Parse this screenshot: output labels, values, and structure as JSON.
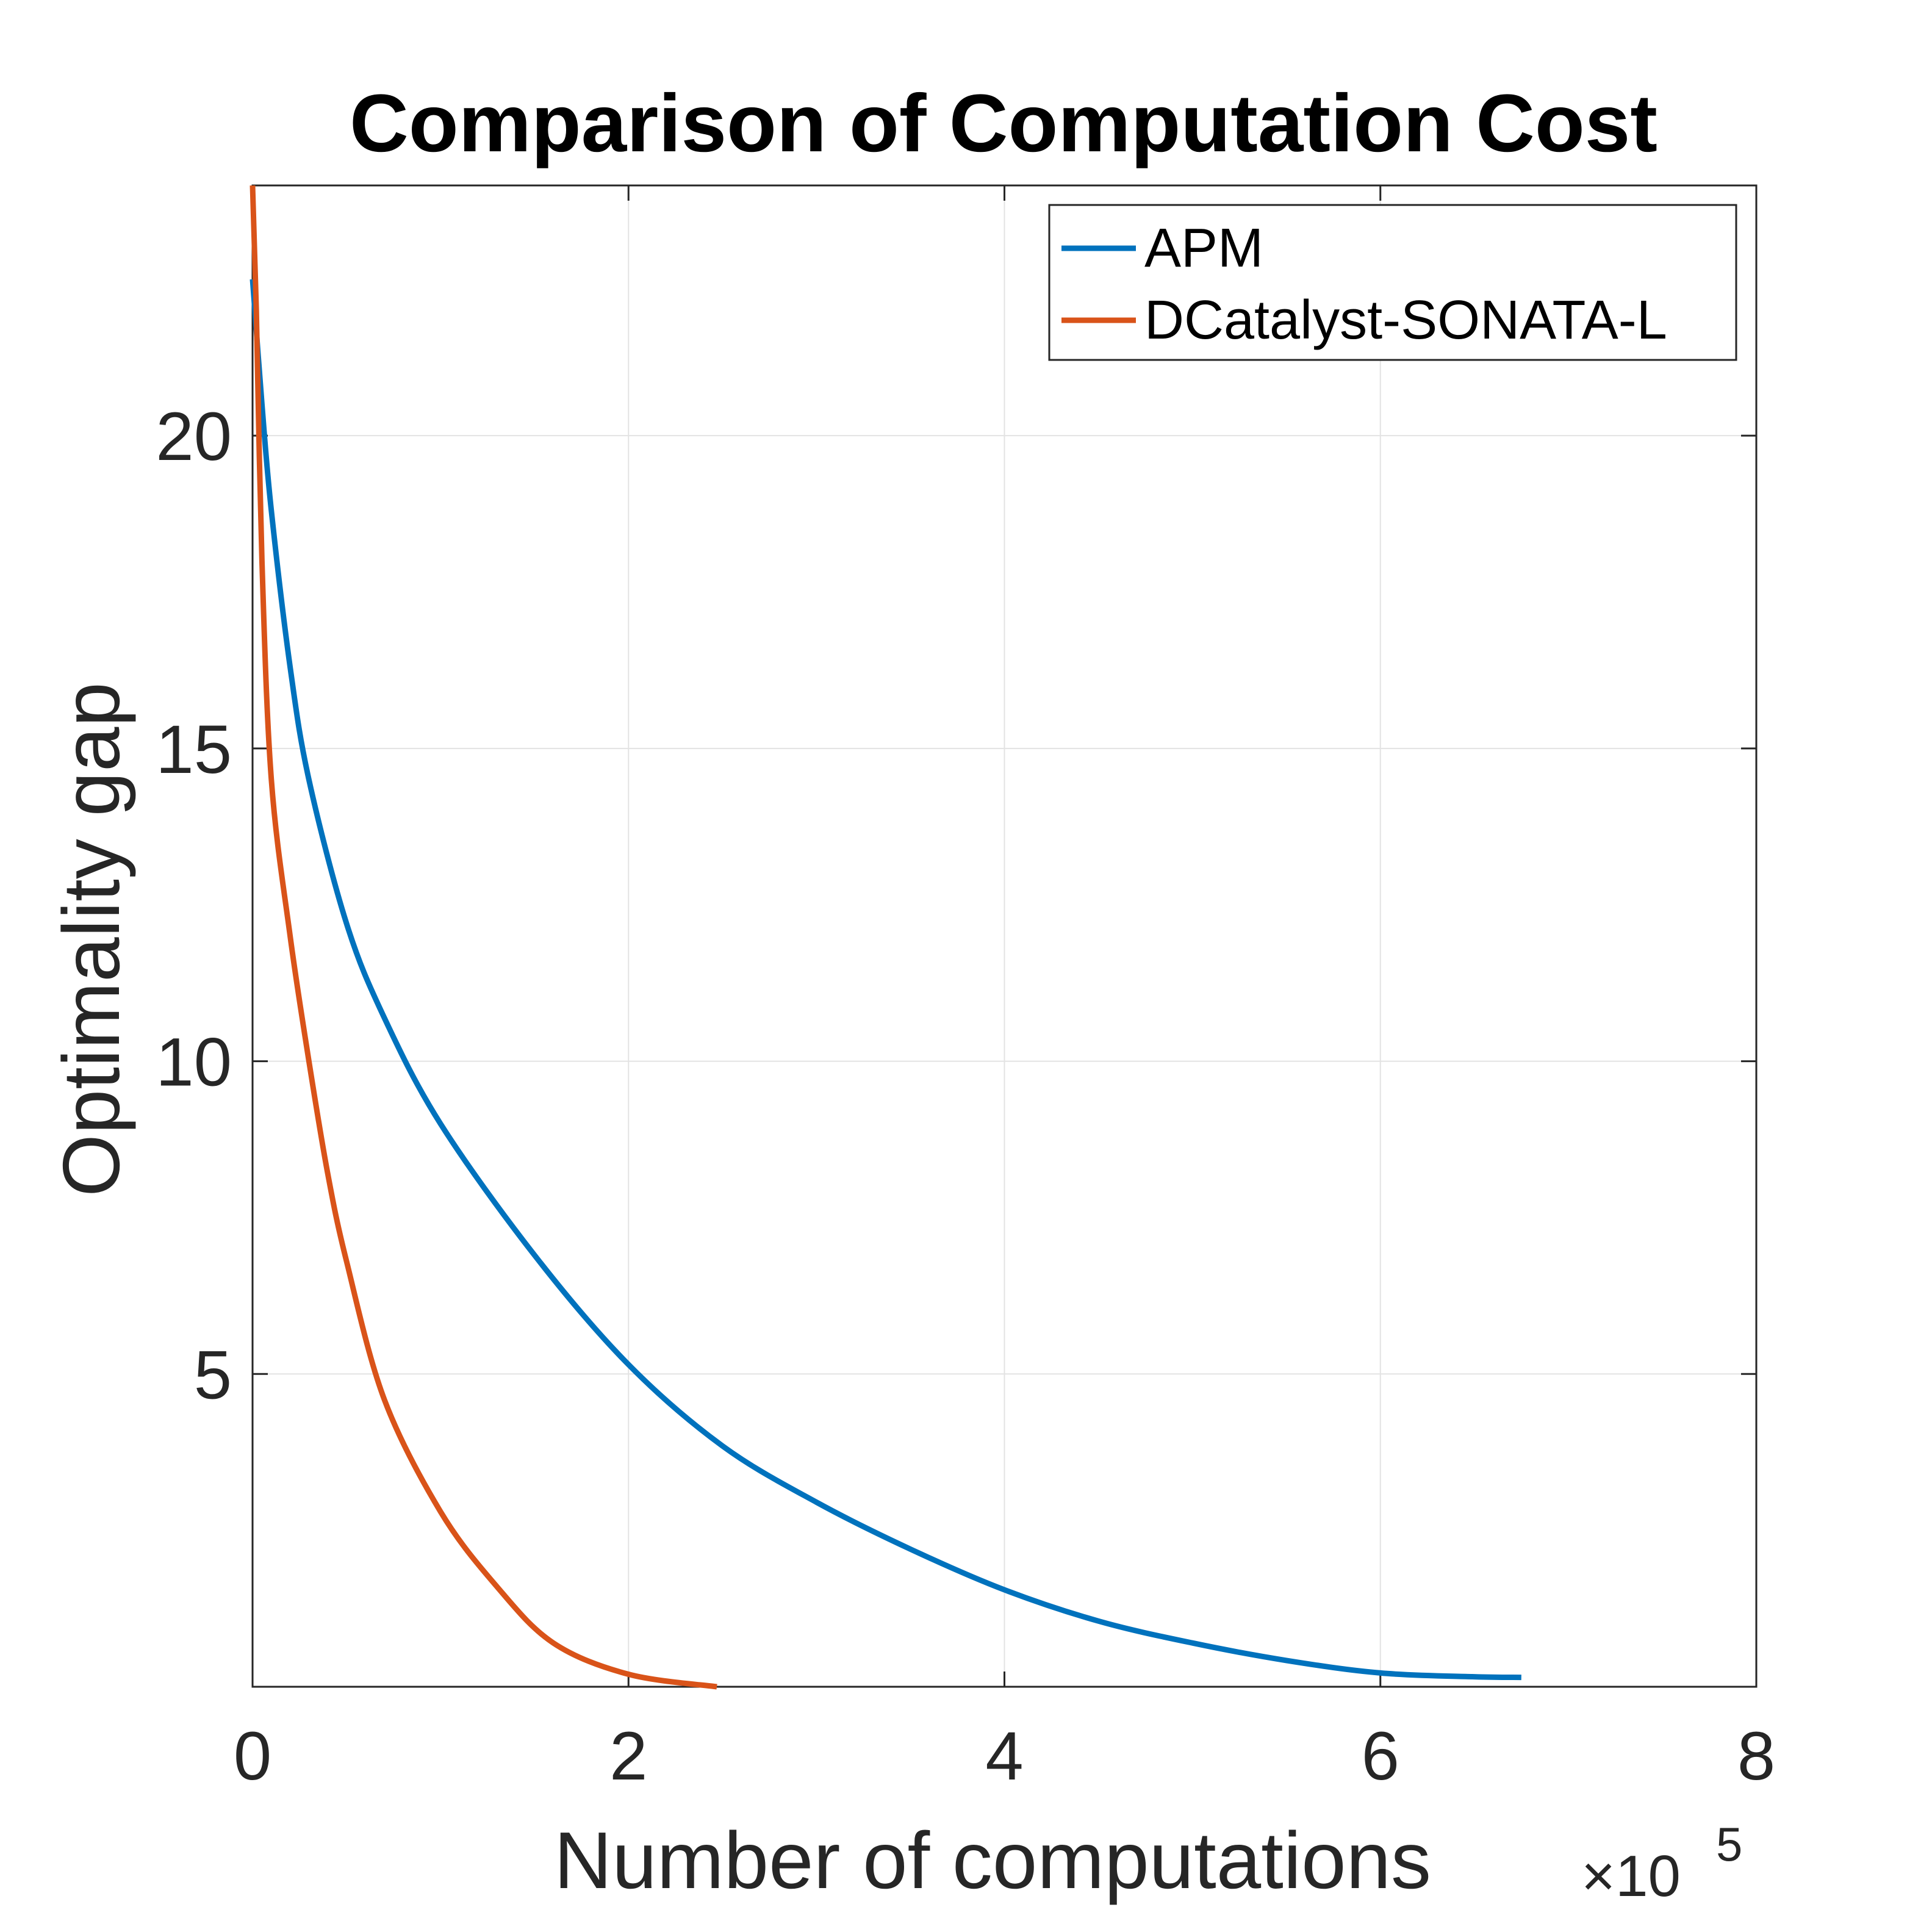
{
  "chart_data": {
    "type": "line",
    "title": "Comparison of Computation Cost",
    "xlabel": "Number of computations",
    "ylabel": "Optimality gap",
    "x_multiplier_base": "×10",
    "x_multiplier_exponent": "5",
    "xlim": [
      0,
      8
    ],
    "ylim": [
      0,
      24
    ],
    "xticks": [
      0,
      2,
      4,
      6,
      8
    ],
    "yticks": [
      5,
      10,
      15,
      20
    ],
    "grid": true,
    "legend_position": "top-right",
    "series": [
      {
        "name": "APM",
        "color": "#0072BD",
        "x": [
          0,
          0.05,
          0.1,
          0.2,
          0.3,
          0.5,
          0.7,
          1.0,
          1.5,
          2.0,
          2.5,
          3.0,
          3.5,
          4.0,
          4.5,
          5.0,
          5.5,
          6.0,
          6.5,
          6.75
        ],
        "y": [
          22.5,
          20.5,
          18.8,
          16.3,
          14.5,
          12.2,
          10.7,
          9.0,
          6.9,
          5.15,
          3.85,
          2.95,
          2.2,
          1.55,
          1.05,
          0.7,
          0.42,
          0.22,
          0.16,
          0.15
        ]
      },
      {
        "name": "DCatalyst-SONATA-L",
        "color": "#D95319",
        "x": [
          0,
          0.02,
          0.05,
          0.1,
          0.2,
          0.3,
          0.4,
          0.5,
          0.7,
          1.0,
          1.3,
          1.6,
          2.0,
          2.47
        ],
        "y": [
          24.0,
          22.0,
          18.0,
          14.5,
          12.0,
          10.0,
          8.2,
          6.8,
          4.6,
          2.8,
          1.6,
          0.7,
          0.2,
          0.0
        ]
      }
    ]
  }
}
